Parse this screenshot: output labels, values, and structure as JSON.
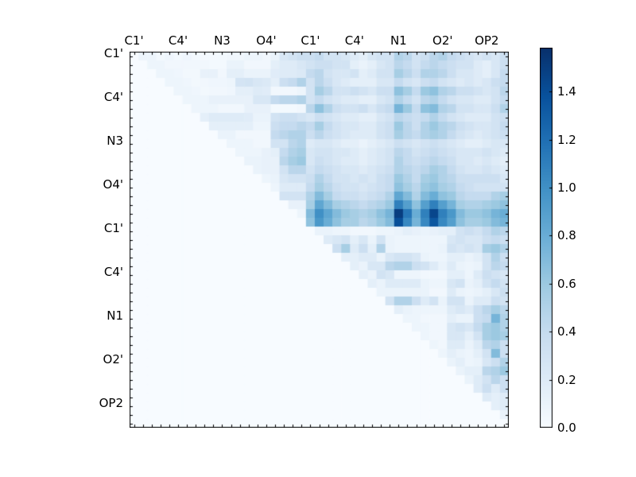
{
  "colors": {
    "background": "#ffffff",
    "frame": "#000000",
    "text": "#000000"
  },
  "chart_data": {
    "type": "heatmap",
    "title": "",
    "xlabel": "",
    "ylabel": "",
    "n": 43,
    "x_tick_labels": [
      "C1'",
      "C4'",
      "N3",
      "O4'",
      "C1'",
      "C4'",
      "N1",
      "O2'",
      "OP2"
    ],
    "y_tick_labels": [
      "C1'",
      "C4'",
      "N3",
      "O4'",
      "C1'",
      "C4'",
      "N1",
      "O2'",
      "OP2"
    ],
    "tick_label_indices": [
      0,
      5,
      10,
      15,
      20,
      25,
      30,
      35,
      40
    ],
    "grid": false,
    "colormap": "Blues",
    "colormap_stops": [
      "#f7fbff",
      "#deebf7",
      "#c6dbef",
      "#9ecae1",
      "#6baed6",
      "#4292c6",
      "#2171b5",
      "#08519c",
      "#08306b"
    ],
    "vmin": 0.0,
    "vmax": 1.583,
    "colorbar_ticks": [
      "0.0",
      "0.2",
      "0.4",
      "0.6",
      "0.8",
      "1.0",
      "1.2",
      "1.4"
    ],
    "colorbar_tick_values": [
      0.0,
      0.2,
      0.4,
      0.6,
      0.8,
      1.0,
      1.2,
      1.4
    ],
    "lower_triangle_value": 0.0,
    "matrix_upper": [
      [
        0.08,
        0.08,
        0.03,
        0.06,
        0.03,
        0.06,
        0.03,
        0.02,
        0.02,
        0.03,
        0.05,
        0.05,
        0.08,
        0.08,
        0.05,
        0.1,
        0.25,
        0.3,
        0.35,
        0.35,
        0.4,
        0.3,
        0.3,
        0.25,
        0.2,
        0.15,
        0.25,
        0.3,
        0.3,
        0.5,
        0.45,
        0.3,
        0.35,
        0.45,
        0.5,
        0.4,
        0.35,
        0.3,
        0.25,
        0.3,
        0.25,
        0.35
      ],
      [
        0.08,
        0.08,
        0.05,
        0.05,
        0.05,
        0.05,
        0.05,
        0.03,
        0.03,
        0.1,
        0.1,
        0.05,
        0.05,
        0.05,
        0.15,
        0.2,
        0.2,
        0.25,
        0.3,
        0.35,
        0.35,
        0.3,
        0.3,
        0.15,
        0.1,
        0.15,
        0.25,
        0.3,
        0.45,
        0.4,
        0.3,
        0.4,
        0.45,
        0.4,
        0.35,
        0.3,
        0.3,
        0.2,
        0.15,
        0.25,
        0.35
      ],
      [
        0.08,
        0.08,
        0.06,
        0.04,
        0.04,
        0.12,
        0.12,
        0.05,
        0.15,
        0.15,
        0.1,
        0.1,
        0.1,
        0.18,
        0.2,
        0.2,
        0.22,
        0.4,
        0.45,
        0.3,
        0.25,
        0.25,
        0.3,
        0.15,
        0.2,
        0.3,
        0.3,
        0.55,
        0.45,
        0.35,
        0.5,
        0.5,
        0.45,
        0.35,
        0.25,
        0.25,
        0.2,
        0.15,
        0.25,
        0.4
      ],
      [
        0.08,
        0.08,
        0.06,
        0.04,
        0.05,
        0.06,
        0.06,
        0.08,
        0.28,
        0.3,
        0.25,
        0.22,
        0.15,
        0.35,
        0.4,
        0.5,
        0.3,
        0.45,
        0.35,
        0.25,
        0.2,
        0.15,
        0.15,
        0.15,
        0.25,
        0.25,
        0.4,
        0.3,
        0.25,
        0.35,
        0.4,
        0.3,
        0.25,
        0.2,
        0.25,
        0.2,
        0.25,
        0.35,
        0.4
      ],
      [
        0.08,
        0.08,
        0.06,
        0.04,
        0.05,
        0.05,
        0.06,
        0.15,
        0.15,
        0.2,
        0.18,
        0.05,
        0.05,
        0.05,
        0.08,
        0.3,
        0.55,
        0.45,
        0.3,
        0.3,
        0.35,
        0.3,
        0.25,
        0.35,
        0.35,
        0.65,
        0.55,
        0.4,
        0.6,
        0.65,
        0.5,
        0.45,
        0.35,
        0.35,
        0.3,
        0.25,
        0.3,
        0.45
      ],
      [
        0.08,
        0.08,
        0.08,
        0.12,
        0.12,
        0.12,
        0.12,
        0.12,
        0.25,
        0.25,
        0.4,
        0.45,
        0.45,
        0.5,
        0.3,
        0.4,
        0.3,
        0.25,
        0.2,
        0.2,
        0.15,
        0.15,
        0.25,
        0.3,
        0.5,
        0.4,
        0.3,
        0.45,
        0.5,
        0.4,
        0.3,
        0.25,
        0.25,
        0.2,
        0.2,
        0.3,
        0.4
      ],
      [
        0.08,
        0.08,
        0.08,
        0.05,
        0.05,
        0.05,
        0.12,
        0.12,
        0.12,
        0.03,
        0.03,
        0.03,
        0.05,
        0.45,
        0.65,
        0.5,
        0.35,
        0.3,
        0.3,
        0.35,
        0.25,
        0.35,
        0.4,
        0.75,
        0.6,
        0.4,
        0.65,
        0.7,
        0.5,
        0.45,
        0.3,
        0.3,
        0.25,
        0.25,
        0.35,
        0.5
      ],
      [
        0.15,
        0.2,
        0.2,
        0.2,
        0.2,
        0.18,
        0.1,
        0.1,
        0.3,
        0.35,
        0.35,
        0.3,
        0.25,
        0.35,
        0.3,
        0.25,
        0.2,
        0.2,
        0.15,
        0.15,
        0.25,
        0.3,
        0.45,
        0.4,
        0.35,
        0.4,
        0.5,
        0.4,
        0.3,
        0.25,
        0.2,
        0.2,
        0.2,
        0.3,
        0.35
      ],
      [
        0.15,
        0.15,
        0.15,
        0.15,
        0.15,
        0.08,
        0.08,
        0.35,
        0.4,
        0.4,
        0.45,
        0.4,
        0.55,
        0.4,
        0.3,
        0.25,
        0.25,
        0.2,
        0.2,
        0.3,
        0.35,
        0.6,
        0.45,
        0.35,
        0.5,
        0.6,
        0.5,
        0.45,
        0.35,
        0.3,
        0.25,
        0.25,
        0.3,
        0.4
      ],
      [
        0.1,
        0.1,
        0.05,
        0.05,
        0.05,
        0.05,
        0.4,
        0.45,
        0.5,
        0.5,
        0.35,
        0.45,
        0.35,
        0.3,
        0.25,
        0.2,
        0.2,
        0.2,
        0.3,
        0.35,
        0.55,
        0.45,
        0.4,
        0.5,
        0.55,
        0.5,
        0.4,
        0.3,
        0.25,
        0.2,
        0.25,
        0.3,
        0.35
      ],
      [
        0.08,
        0.08,
        0.08,
        0.05,
        0.05,
        0.3,
        0.3,
        0.45,
        0.5,
        0.2,
        0.25,
        0.25,
        0.2,
        0.15,
        0.15,
        0.1,
        0.15,
        0.2,
        0.25,
        0.35,
        0.3,
        0.25,
        0.3,
        0.35,
        0.3,
        0.25,
        0.2,
        0.15,
        0.15,
        0.2,
        0.25,
        0.25
      ],
      [
        0.08,
        0.08,
        0.08,
        0.12,
        0.15,
        0.4,
        0.5,
        0.55,
        0.25,
        0.3,
        0.3,
        0.25,
        0.25,
        0.2,
        0.15,
        0.2,
        0.25,
        0.3,
        0.45,
        0.4,
        0.3,
        0.35,
        0.4,
        0.35,
        0.3,
        0.25,
        0.25,
        0.25,
        0.3,
        0.25,
        0.2
      ],
      [
        0.1,
        0.1,
        0.12,
        0.12,
        0.45,
        0.55,
        0.6,
        0.25,
        0.35,
        0.3,
        0.25,
        0.2,
        0.2,
        0.15,
        0.2,
        0.25,
        0.3,
        0.5,
        0.4,
        0.35,
        0.4,
        0.45,
        0.4,
        0.35,
        0.25,
        0.25,
        0.2,
        0.25,
        0.2,
        0.15
      ],
      [
        0.1,
        0.12,
        0.12,
        0.3,
        0.45,
        0.45,
        0.3,
        0.4,
        0.35,
        0.3,
        0.25,
        0.25,
        0.2,
        0.25,
        0.3,
        0.35,
        0.5,
        0.45,
        0.4,
        0.45,
        0.55,
        0.5,
        0.4,
        0.3,
        0.25,
        0.25,
        0.3,
        0.25,
        0.2
      ],
      [
        0.08,
        0.1,
        0.25,
        0.3,
        0.3,
        0.35,
        0.5,
        0.4,
        0.3,
        0.3,
        0.25,
        0.3,
        0.25,
        0.35,
        0.4,
        0.6,
        0.5,
        0.4,
        0.55,
        0.6,
        0.5,
        0.45,
        0.35,
        0.35,
        0.35,
        0.35,
        0.35,
        0.25
      ],
      [
        0.08,
        0.2,
        0.2,
        0.2,
        0.4,
        0.55,
        0.45,
        0.35,
        0.3,
        0.3,
        0.25,
        0.3,
        0.35,
        0.4,
        0.65,
        0.55,
        0.45,
        0.6,
        0.65,
        0.55,
        0.5,
        0.4,
        0.35,
        0.3,
        0.3,
        0.3,
        0.3
      ],
      [
        0.3,
        0.3,
        0.3,
        0.5,
        0.7,
        0.55,
        0.4,
        0.35,
        0.35,
        0.3,
        0.35,
        0.4,
        0.5,
        0.85,
        0.7,
        0.5,
        0.7,
        0.8,
        0.65,
        0.6,
        0.45,
        0.4,
        0.4,
        0.4,
        0.5,
        0.55
      ],
      [
        0.12,
        0.12,
        0.55,
        0.85,
        0.7,
        0.55,
        0.5,
        0.45,
        0.4,
        0.45,
        0.5,
        0.6,
        1.1,
        0.9,
        0.65,
        0.9,
        1.1,
        0.9,
        0.75,
        0.55,
        0.5,
        0.5,
        0.55,
        0.6,
        0.65
      ],
      [
        0.08,
        0.7,
        1.0,
        0.85,
        0.7,
        0.6,
        0.55,
        0.5,
        0.55,
        0.65,
        0.75,
        1.5,
        1.15,
        0.8,
        1.1,
        1.45,
        1.1,
        0.95,
        0.7,
        0.6,
        0.6,
        0.65,
        0.75,
        0.8
      ],
      [
        0.65,
        0.95,
        0.8,
        0.65,
        0.55,
        0.55,
        0.45,
        0.5,
        0.6,
        0.7,
        1.4,
        1.05,
        0.75,
        1.05,
        1.35,
        1.05,
        0.9,
        0.65,
        0.55,
        0.55,
        0.6,
        0.7,
        0.75
      ],
      [
        0.1,
        0.1,
        0.08,
        0.08,
        0.05,
        0.05,
        0.05,
        0.08,
        0.08,
        0.1,
        0.15,
        0.12,
        0.1,
        0.12,
        0.15,
        0.15,
        0.3,
        0.35,
        0.3,
        0.4,
        0.5,
        0.45
      ],
      [
        0.2,
        0.25,
        0.3,
        0.15,
        0.25,
        0.1,
        0.3,
        0.1,
        0.08,
        0.08,
        0.08,
        0.08,
        0.08,
        0.08,
        0.25,
        0.3,
        0.25,
        0.25,
        0.35,
        0.4,
        0.35
      ],
      [
        0.35,
        0.55,
        0.2,
        0.35,
        0.15,
        0.5,
        0.1,
        0.08,
        0.08,
        0.08,
        0.08,
        0.08,
        0.1,
        0.3,
        0.25,
        0.3,
        0.25,
        0.55,
        0.6,
        0.5
      ],
      [
        0.15,
        0.15,
        0.2,
        0.2,
        0.1,
        0.25,
        0.3,
        0.3,
        0.25,
        0.1,
        0.08,
        0.08,
        0.15,
        0.15,
        0.1,
        0.15,
        0.3,
        0.5,
        0.35
      ],
      [
        0.15,
        0.1,
        0.25,
        0.25,
        0.45,
        0.5,
        0.5,
        0.35,
        0.3,
        0.2,
        0.1,
        0.2,
        0.1,
        0.08,
        0.1,
        0.3,
        0.45,
        0.4
      ],
      [
        0.15,
        0.1,
        0.3,
        0.25,
        0.08,
        0.08,
        0.08,
        0.05,
        0.05,
        0.05,
        0.15,
        0.15,
        0.08,
        0.2,
        0.35,
        0.3,
        0.25
      ],
      [
        0.15,
        0.1,
        0.2,
        0.2,
        0.2,
        0.2,
        0.1,
        0.08,
        0.08,
        0.25,
        0.3,
        0.1,
        0.15,
        0.3,
        0.4,
        0.3
      ],
      [
        0.1,
        0.1,
        0.1,
        0.1,
        0.1,
        0.1,
        0.05,
        0.05,
        0.2,
        0.1,
        0.08,
        0.1,
        0.15,
        0.25,
        0.35
      ],
      [
        0.3,
        0.5,
        0.5,
        0.35,
        0.2,
        0.3,
        0.1,
        0.3,
        0.3,
        0.1,
        0.2,
        0.2,
        0.35,
        0.3
      ],
      [
        0.15,
        0.1,
        0.08,
        0.08,
        0.08,
        0.08,
        0.2,
        0.25,
        0.2,
        0.35,
        0.45,
        0.55,
        0.45
      ],
      [
        0.08,
        0.08,
        0.05,
        0.05,
        0.05,
        0.15,
        0.1,
        0.1,
        0.35,
        0.4,
        0.75,
        0.5
      ],
      [
        0.08,
        0.08,
        0.05,
        0.05,
        0.25,
        0.3,
        0.25,
        0.4,
        0.55,
        0.6,
        0.5
      ],
      [
        0.08,
        0.05,
        0.05,
        0.25,
        0.25,
        0.15,
        0.3,
        0.55,
        0.6,
        0.55
      ],
      [
        0.08,
        0.05,
        0.2,
        0.2,
        0.1,
        0.2,
        0.45,
        0.5,
        0.35
      ],
      [
        0.08,
        0.15,
        0.1,
        0.08,
        0.15,
        0.3,
        0.7,
        0.35
      ],
      [
        0.1,
        0.15,
        0.08,
        0.1,
        0.25,
        0.35,
        0.5
      ],
      [
        0.1,
        0.15,
        0.15,
        0.45,
        0.5,
        0.6
      ],
      [
        0.1,
        0.2,
        0.3,
        0.45,
        0.35
      ],
      [
        0.2,
        0.35,
        0.2,
        0.35
      ],
      [
        0.2,
        0.15,
        0.2
      ],
      [
        0.15,
        0.2
      ],
      [
        0.1
      ],
      []
    ]
  }
}
